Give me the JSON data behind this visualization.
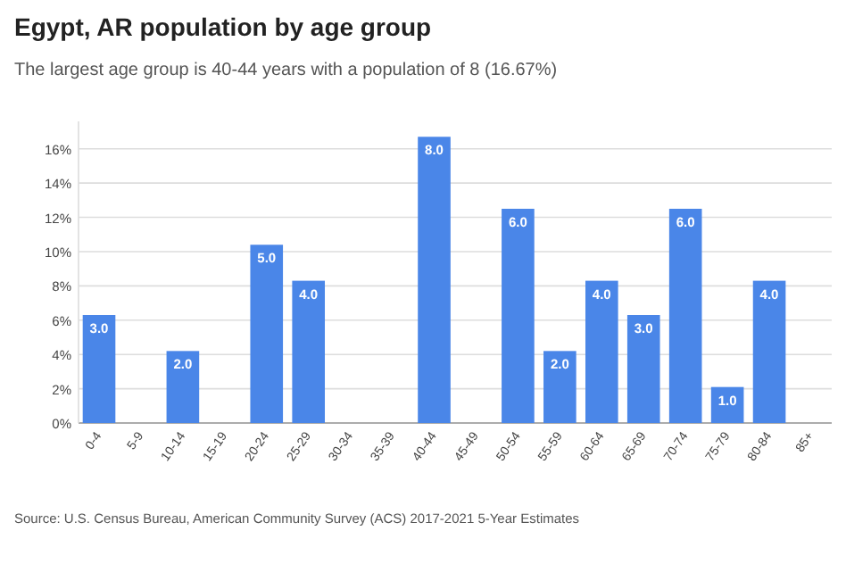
{
  "chart_data": {
    "type": "bar",
    "title": "Egypt, AR population by age group",
    "subtitle": "The largest age group is 40-44 years with a population of 8 (16.67%)",
    "categories": [
      "0-4",
      "5-9",
      "10-14",
      "15-19",
      "20-24",
      "25-29",
      "30-34",
      "35-39",
      "40-44",
      "45-49",
      "50-54",
      "55-59",
      "60-64",
      "65-69",
      "70-74",
      "75-79",
      "80-84",
      "85+"
    ],
    "values": [
      6.3,
      0,
      4.2,
      0,
      10.4,
      8.3,
      0,
      0,
      16.7,
      0,
      12.5,
      4.2,
      8.3,
      6.3,
      12.5,
      2.1,
      8.3,
      0
    ],
    "color": "#4a86e8",
    "ylim": [
      0,
      17.6
    ],
    "yticks": [
      {
        "value": 0,
        "label": "0%"
      },
      {
        "value": 2,
        "label": "2%"
      },
      {
        "value": 4,
        "label": "4%"
      },
      {
        "value": 6,
        "label": "6%"
      },
      {
        "value": 8,
        "label": "8%"
      },
      {
        "value": 10,
        "label": "10%"
      },
      {
        "value": 12,
        "label": "12%"
      },
      {
        "value": 14,
        "label": "14%"
      },
      {
        "value": 16,
        "label": "16%"
      }
    ],
    "grid": "y",
    "annotations": [
      "Source: U.S. Census Bureau, American Community Survey (ACS) 2017-2021 5-Year Estimates",
      {
        "text": "3.0",
        "x": "0-4",
        "y": 6.3
      },
      {
        "text": "2.0",
        "x": "10-14",
        "y": 4.2
      },
      {
        "text": "5.0",
        "x": "20-24",
        "y": 10.4
      },
      {
        "text": "4.0",
        "x": "25-29",
        "y": 8.3
      },
      {
        "text": "8.0",
        "x": "40-44",
        "y": 16.7
      },
      {
        "text": "6.0",
        "x": "50-54",
        "y": 12.5
      },
      {
        "text": "2.0",
        "x": "55-59",
        "y": 4.2
      },
      {
        "text": "4.0",
        "x": "60-64",
        "y": 8.3
      },
      {
        "text": "3.0",
        "x": "65-69",
        "y": 6.3
      },
      {
        "text": "6.0",
        "x": "70-74",
        "y": 12.5
      },
      {
        "text": "1.0",
        "x": "75-79",
        "y": 2.1
      },
      {
        "text": "4.0",
        "x": "80-84",
        "y": 8.3
      }
    ]
  }
}
